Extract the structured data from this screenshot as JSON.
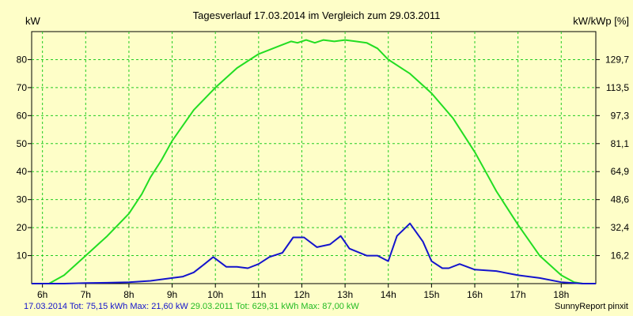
{
  "chart_data": {
    "type": "line",
    "title": "Tagesverlauf 17.03.2014 im Vergleich zum 29.03.2011",
    "ylabel_left": "kW",
    "ylabel_right": "kW/kWp [%]",
    "x_ticks": [
      "6h",
      "7h",
      "8h",
      "9h",
      "10h",
      "11h",
      "12h",
      "13h",
      "14h",
      "15h",
      "16h",
      "17h",
      "18h"
    ],
    "xlim": [
      5.75,
      18.8
    ],
    "ylim": [
      0,
      90
    ],
    "y_ticks_left": [
      "10",
      "20",
      "30",
      "40",
      "50",
      "60",
      "70",
      "80"
    ],
    "y_ticks_right": [
      "16,2",
      "32,4",
      "48,6",
      "64,9",
      "81,1",
      "97,3",
      "113,5",
      "129,7"
    ],
    "grid": true,
    "series": [
      {
        "name": "29.03.2011",
        "color": "#22dd22",
        "x": [
          5.75,
          6.15,
          6.5,
          7.0,
          7.5,
          8.0,
          8.3,
          8.5,
          8.75,
          9.0,
          9.5,
          10.0,
          10.5,
          11.0,
          11.5,
          11.75,
          11.9,
          12.1,
          12.3,
          12.5,
          12.75,
          13.0,
          13.25,
          13.5,
          13.75,
          14.0,
          14.5,
          15.0,
          15.5,
          16.0,
          16.25,
          16.5,
          17.0,
          17.5,
          18.0,
          18.3,
          18.5,
          18.8
        ],
        "y": [
          0,
          0,
          3,
          10,
          17,
          25,
          32,
          38,
          44,
          51,
          62,
          70,
          77,
          82,
          85,
          86.5,
          86,
          87,
          86,
          87,
          86.5,
          87,
          86.5,
          86,
          84,
          80,
          75,
          68,
          59,
          47,
          40,
          33,
          21,
          10,
          3,
          0.5,
          0,
          0
        ]
      },
      {
        "name": "17.03.2014",
        "color": "#1414cc",
        "x": [
          5.75,
          6.5,
          7.0,
          7.5,
          8.0,
          8.5,
          9.0,
          9.25,
          9.5,
          9.75,
          9.95,
          10.25,
          10.5,
          10.75,
          11.0,
          11.25,
          11.55,
          11.8,
          12.05,
          12.35,
          12.65,
          12.9,
          13.1,
          13.5,
          13.75,
          14.0,
          14.2,
          14.5,
          14.8,
          15.0,
          15.25,
          15.4,
          15.65,
          16.0,
          16.5,
          17.0,
          17.5,
          18.0,
          18.5,
          18.8
        ],
        "y": [
          0,
          0,
          0.2,
          0.3,
          0.5,
          1,
          2,
          2.5,
          4,
          7,
          9.5,
          6,
          6,
          5.5,
          7,
          9.5,
          11,
          16.5,
          16.5,
          13,
          14,
          17,
          12.5,
          10,
          10,
          8,
          17,
          21.5,
          15,
          8,
          5.5,
          5.5,
          7,
          5,
          4.5,
          3,
          2,
          0.5,
          0,
          0
        ]
      }
    ]
  },
  "footer": {
    "series1_summary": "17.03.2014 Tot: 75,15 kWh Max: 21,60 kW",
    "series2_summary": "29.03.2011 Tot: 629,31 kWh Max: 87,00 kW",
    "credit": "SunnyReport pinxit"
  }
}
